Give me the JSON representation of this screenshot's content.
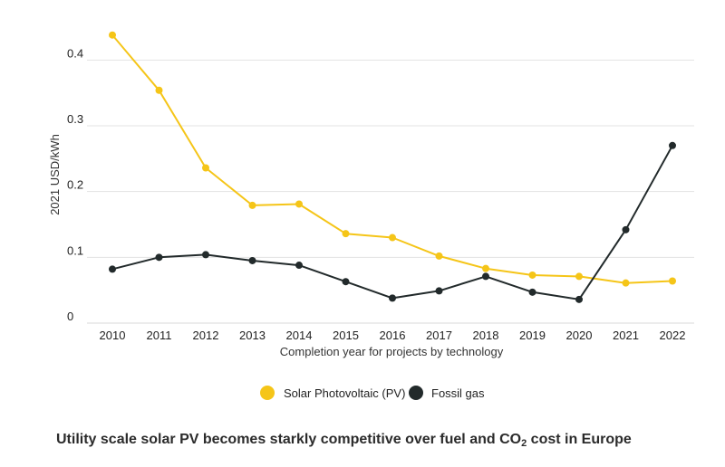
{
  "chart_data": {
    "type": "line",
    "title": "",
    "xlabel": "Completion year for projects by technology",
    "ylabel": "2021 USD/kWh",
    "ylim": [
      0,
      0.45
    ],
    "yticks": [
      "0",
      "0.1",
      "0.2",
      "0.3",
      "0.4"
    ],
    "yticks_values": [
      0,
      0.1,
      0.2,
      0.3,
      0.4
    ],
    "categories": [
      "2010",
      "2011",
      "2012",
      "2013",
      "2014",
      "2015",
      "2016",
      "2017",
      "2018",
      "2019",
      "2020",
      "2021",
      "2022"
    ],
    "grid": "horizontal",
    "legend_position": "bottom",
    "series": [
      {
        "name": "Solar Photovoltaic (PV)",
        "color": "#f5c518",
        "values": [
          0.438,
          0.354,
          0.236,
          0.179,
          0.181,
          0.136,
          0.13,
          0.102,
          0.083,
          0.073,
          0.071,
          0.061,
          0.064
        ]
      },
      {
        "name": "Fossil gas",
        "color": "#222a2b",
        "values": [
          0.082,
          0.1,
          0.104,
          0.095,
          0.088,
          0.063,
          0.038,
          0.049,
          0.071,
          0.047,
          0.036,
          0.142,
          0.27
        ]
      }
    ]
  },
  "caption": {
    "before": "Utility scale solar PV becomes starkly competitive over fuel and CO",
    "sub": "2",
    "after": " cost in Europe"
  }
}
